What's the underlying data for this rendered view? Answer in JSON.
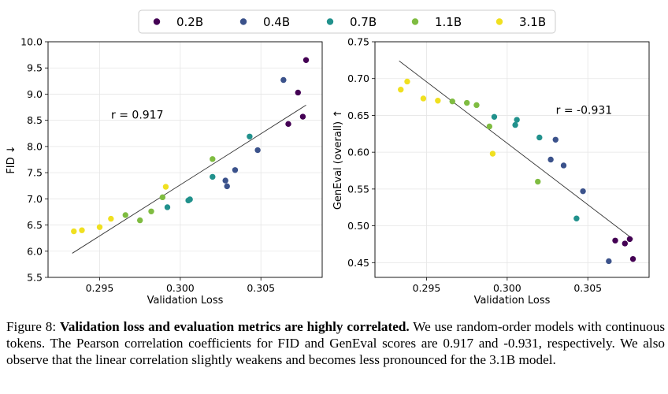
{
  "legend": {
    "items": [
      {
        "label": "0.2B",
        "color": "#440154"
      },
      {
        "label": "0.4B",
        "color": "#3b528b"
      },
      {
        "label": "0.7B",
        "color": "#21918c"
      },
      {
        "label": "1.1B",
        "color": "#7fbc41"
      },
      {
        "label": "3.1B",
        "color": "#f0e020"
      }
    ]
  },
  "chart_data": [
    {
      "type": "scatter",
      "xlabel": "Validation Loss",
      "ylabel": "FID  ↓",
      "xlim": [
        0.2918,
        0.3088
      ],
      "ylim": [
        5.5,
        10.0
      ],
      "xticks": [
        "0.295",
        "0.300",
        "0.305"
      ],
      "yticks": [
        "5.5",
        "6.0",
        "6.5",
        "7.0",
        "7.5",
        "8.0",
        "8.5",
        "9.0",
        "9.5",
        "10.0"
      ],
      "grid": true,
      "annotation": "r = 0.917",
      "trendline": {
        "x": [
          0.2933,
          0.3078
        ],
        "y": [
          5.96,
          8.79
        ]
      },
      "series": [
        {
          "name": "0.2B",
          "x": [
            0.3078,
            0.3073,
            0.3076,
            0.3067
          ],
          "y": [
            9.65,
            9.03,
            8.57,
            8.43
          ]
        },
        {
          "name": "0.4B",
          "x": [
            0.3064,
            0.3048,
            0.3034,
            0.3028,
            0.3029
          ],
          "y": [
            9.27,
            7.93,
            7.55,
            7.35,
            7.24
          ]
        },
        {
          "name": "0.7B",
          "x": [
            0.3043,
            0.302,
            0.3006,
            0.3005,
            0.2992
          ],
          "y": [
            8.19,
            7.42,
            6.99,
            6.97,
            6.84
          ]
        },
        {
          "name": "1.1B",
          "x": [
            0.302,
            0.2989,
            0.2982,
            0.2975,
            0.2966
          ],
          "y": [
            7.76,
            7.03,
            6.76,
            6.59,
            6.69
          ]
        },
        {
          "name": "3.1B",
          "x": [
            0.2991,
            0.2957,
            0.295,
            0.2939,
            0.2934
          ],
          "y": [
            7.23,
            6.62,
            6.46,
            6.4,
            6.38
          ]
        }
      ]
    },
    {
      "type": "scatter",
      "xlabel": "Validation Loss",
      "ylabel": "GenEval (overall) ↑",
      "xlim": [
        0.2918,
        0.3088
      ],
      "ylim": [
        0.43,
        0.75
      ],
      "xticks": [
        "0.295",
        "0.300",
        "0.305"
      ],
      "yticks": [
        "0.45",
        "0.50",
        "0.55",
        "0.60",
        "0.65",
        "0.70",
        "0.75"
      ],
      "grid": true,
      "annotation": "r = -0.931",
      "trendline": {
        "x": [
          0.2933,
          0.3078
        ],
        "y": [
          0.724,
          0.482
        ]
      },
      "series": [
        {
          "name": "0.2B",
          "x": [
            0.3076,
            0.3067,
            0.3073,
            0.3078
          ],
          "y": [
            0.482,
            0.48,
            0.476,
            0.455
          ]
        },
        {
          "name": "0.4B",
          "x": [
            0.3063,
            0.3047,
            0.3035,
            0.303,
            0.3027
          ],
          "y": [
            0.452,
            0.547,
            0.582,
            0.617,
            0.59
          ]
        },
        {
          "name": "0.7B",
          "x": [
            0.3043,
            0.302,
            0.3006,
            0.3005,
            0.2992
          ],
          "y": [
            0.51,
            0.62,
            0.644,
            0.637,
            0.648
          ]
        },
        {
          "name": "1.1B",
          "x": [
            0.2966,
            0.2975,
            0.2981,
            0.2989,
            0.3019
          ],
          "y": [
            0.669,
            0.667,
            0.664,
            0.635,
            0.56
          ]
        },
        {
          "name": "3.1B",
          "x": [
            0.2938,
            0.2934,
            0.2948,
            0.2957,
            0.2991
          ],
          "y": [
            0.696,
            0.685,
            0.673,
            0.67,
            0.598
          ]
        }
      ]
    }
  ],
  "caption": {
    "figure_label": "Figure 8:",
    "bold_text": "Validation loss and evaluation metrics are highly correlated.",
    "body_text": "We use random-order models with continuous tokens. The Pearson correlation coefficients for FID and GenEval scores are 0.917 and -0.931, respectively. We also observe that the linear correlation slightly weakens and becomes less pronounced for the 3.1B model."
  }
}
